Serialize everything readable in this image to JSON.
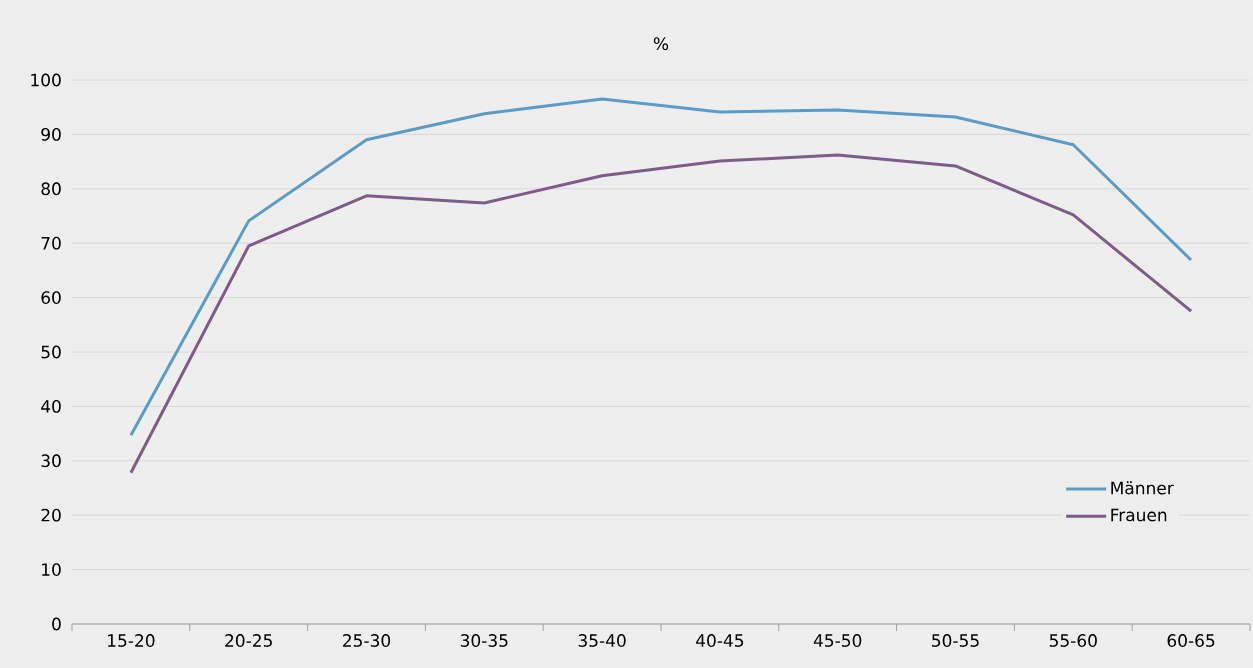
{
  "chart_data": {
    "type": "line",
    "title": "%",
    "categories": [
      "15-20",
      "20-25",
      "25-30",
      "30-35",
      "35-40",
      "40-45",
      "45-50",
      "50-55",
      "55-60",
      "60-65"
    ],
    "series": [
      {
        "name": "Männer",
        "color": "#5b9bc8",
        "values": [
          34.7,
          74.1,
          89.0,
          93.8,
          96.5,
          94.1,
          94.5,
          93.2,
          88.1,
          66.9
        ]
      },
      {
        "name": "Frauen",
        "color": "#7f5a8a",
        "values": [
          27.8,
          69.5,
          78.7,
          77.4,
          82.4,
          85.1,
          86.2,
          84.2,
          75.2,
          57.5
        ]
      }
    ],
    "ylim": [
      0,
      100
    ],
    "yticks": [
      0,
      10,
      20,
      30,
      40,
      50,
      60,
      70,
      80,
      90,
      100
    ],
    "grid": "y",
    "legend": "bottom right",
    "marker": "none",
    "line_style": "solid"
  }
}
